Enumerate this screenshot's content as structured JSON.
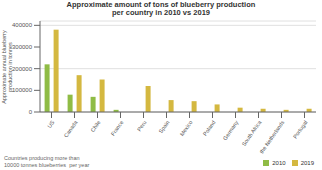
{
  "chart_data": {
    "type": "bar",
    "title": "Approximate amount of tons of blueberry production\nper country in 2010 vs 2019",
    "ylabel": "Approximate annual blueberry\nproduction in tonnes",
    "annotations": [
      "Countries producing more than\n10000 tonnes blueberries  per year"
    ],
    "categories": [
      "US",
      "Canada",
      "Chile",
      "France",
      "Peru",
      "Spain",
      "Mexico",
      "Poland",
      "Germany",
      "South Africa",
      "the Netherlands",
      "Portugal"
    ],
    "series": [
      {
        "name": "2010",
        "color": "#8fbc45",
        "values": [
          220000,
          80000,
          70000,
          10000,
          0,
          0,
          0,
          0,
          0,
          0,
          0,
          0
        ]
      },
      {
        "name": "2019",
        "color": "#d4b840",
        "values": [
          380000,
          170000,
          150000,
          0,
          120000,
          55000,
          50000,
          35000,
          20000,
          15000,
          10000,
          15000
        ]
      }
    ],
    "ylim": [
      0,
      420000
    ],
    "yticks": [
      0,
      100000,
      200000,
      300000,
      400000
    ],
    "grid": true,
    "legend": "bottom"
  }
}
